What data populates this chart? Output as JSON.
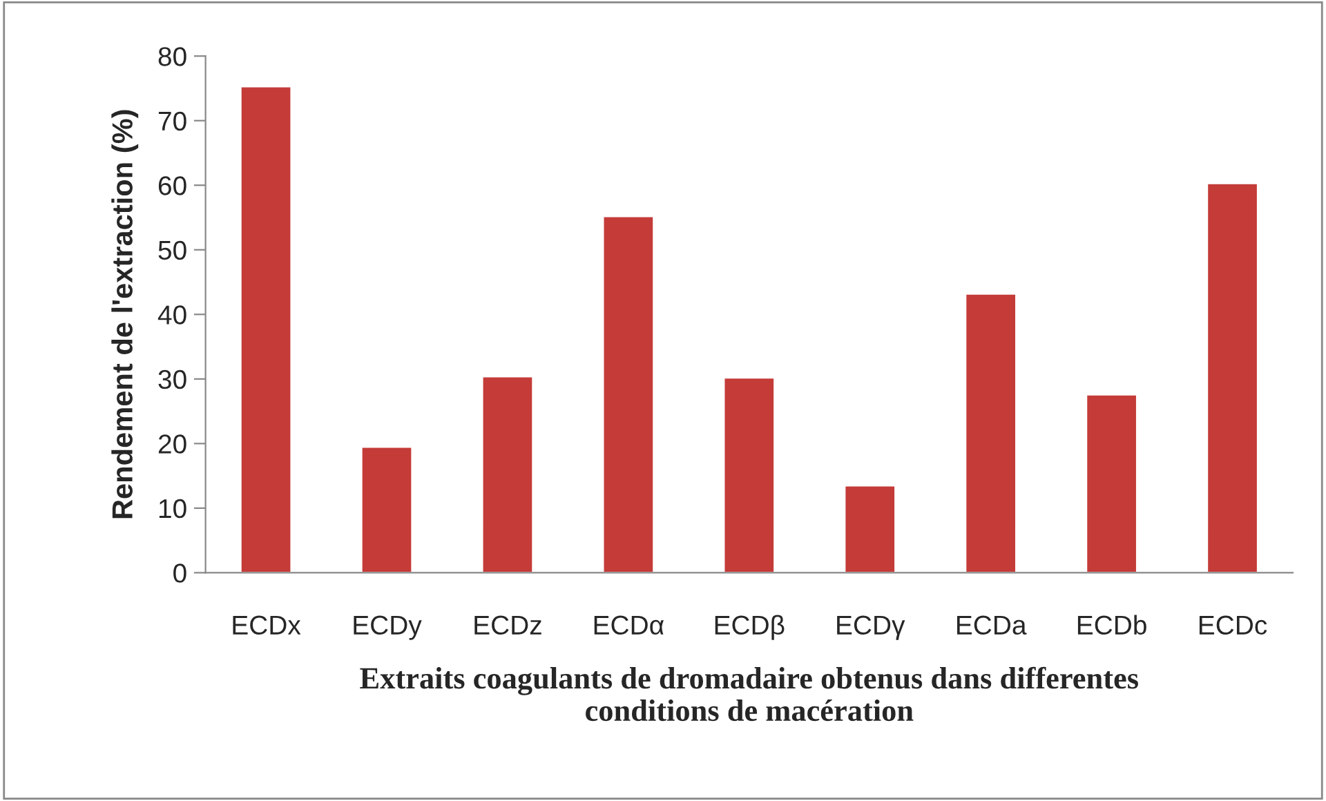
{
  "chart_data": {
    "type": "bar",
    "xlabel": "Extraits coagulants de dromadaire obtenus dans differentes\nconditions de macération",
    "ylabel": "Rendement de l'extraction (%)",
    "categories": [
      "ECDx",
      "ECDy",
      "ECDz",
      "ECDα",
      "ECDβ",
      "ECDγ",
      "ECDa",
      "ECDb",
      "ECDc"
    ],
    "values": [
      75.3,
      19.5,
      30.4,
      55.2,
      30.2,
      13.5,
      43.2,
      27.6,
      60.3
    ],
    "color": "#c43b38",
    "ylim": [
      0,
      80
    ],
    "yticks": [
      0,
      10,
      20,
      30,
      40,
      50,
      60,
      70,
      80
    ],
    "grid": false,
    "legend": false
  }
}
